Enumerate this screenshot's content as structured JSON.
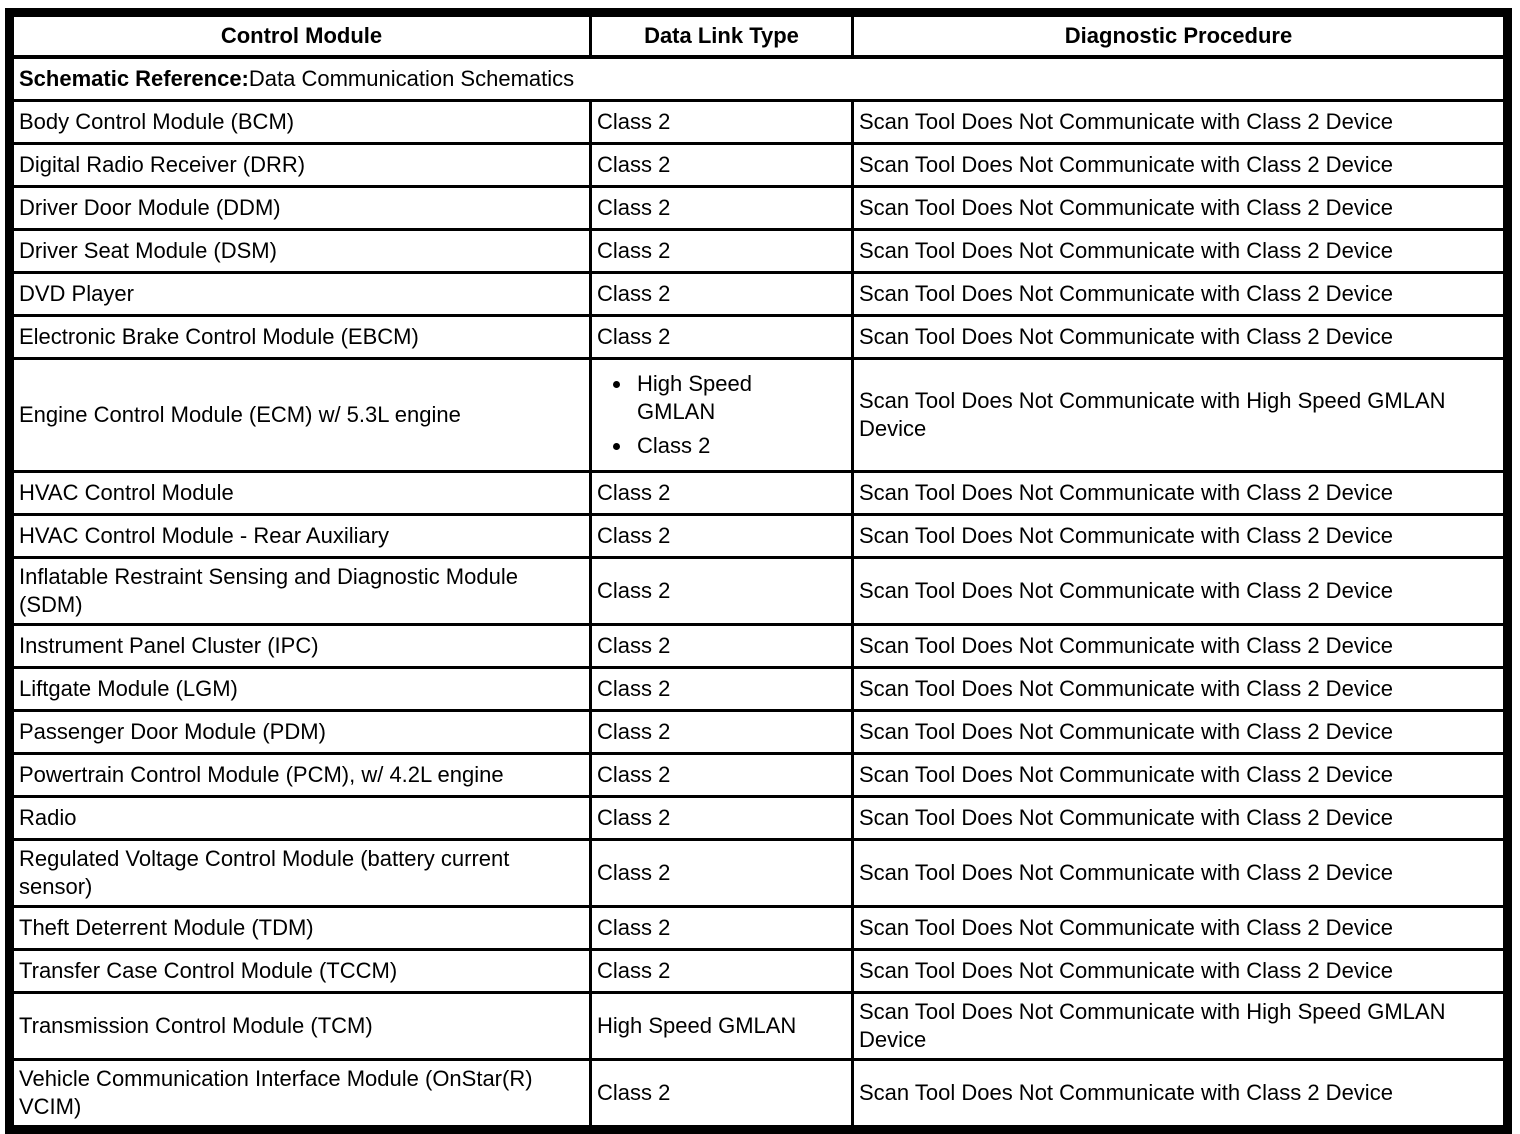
{
  "document": {
    "columns": [
      "Control Module",
      "Data Link Type",
      "Diagnostic Procedure"
    ],
    "schematic_reference": {
      "label": "Schematic Reference:",
      "value": "Data Communication Schematics"
    },
    "rows": [
      {
        "module": "Body Control Module (BCM)",
        "data_link": "Class 2",
        "procedure": "Scan Tool Does Not Communicate with Class 2 Device"
      },
      {
        "module": "Digital Radio Receiver (DRR)",
        "data_link": "Class 2",
        "procedure": "Scan Tool Does Not Communicate with Class 2 Device"
      },
      {
        "module": "Driver Door Module (DDM)",
        "data_link": "Class 2",
        "procedure": "Scan Tool Does Not Communicate with Class 2 Device"
      },
      {
        "module": "Driver Seat Module (DSM)",
        "data_link": "Class 2",
        "procedure": "Scan Tool Does Not Communicate with Class 2 Device"
      },
      {
        "module": "DVD Player",
        "data_link": "Class 2",
        "procedure": "Scan Tool Does Not Communicate with Class 2 Device"
      },
      {
        "module": "Electronic Brake Control Module (EBCM)",
        "data_link": "Class 2",
        "procedure": "Scan Tool Does Not Communicate with Class 2 Device"
      },
      {
        "module": "Engine Control Module (ECM) w/ 5.3L engine",
        "data_link": [
          "High Speed GMLAN",
          "Class 2"
        ],
        "procedure": "Scan Tool Does Not Communicate with High Speed GMLAN Device"
      },
      {
        "module": "HVAC Control Module",
        "data_link": "Class 2",
        "procedure": "Scan Tool Does Not Communicate with Class 2 Device"
      },
      {
        "module": "HVAC Control Module - Rear Auxiliary",
        "data_link": "Class 2",
        "procedure": "Scan Tool Does Not Communicate with Class 2 Device"
      },
      {
        "module": "Inflatable Restraint Sensing and Diagnostic Module (SDM)",
        "data_link": "Class 2",
        "procedure": "Scan Tool Does Not Communicate with Class 2 Device"
      },
      {
        "module": "Instrument Panel Cluster (IPC)",
        "data_link": "Class 2",
        "procedure": "Scan Tool Does Not Communicate with Class 2 Device"
      },
      {
        "module": "Liftgate Module (LGM)",
        "data_link": "Class 2",
        "procedure": "Scan Tool Does Not Communicate with Class 2 Device"
      },
      {
        "module": "Passenger Door Module (PDM)",
        "data_link": "Class 2",
        "procedure": "Scan Tool Does Not Communicate with Class 2 Device"
      },
      {
        "module": "Powertrain Control Module (PCM), w/ 4.2L engine",
        "data_link": "Class 2",
        "procedure": "Scan Tool Does Not Communicate with Class 2 Device"
      },
      {
        "module": "Radio",
        "data_link": "Class 2",
        "procedure": "Scan Tool Does Not Communicate with Class 2 Device"
      },
      {
        "module": "Regulated Voltage Control Module (battery current sensor)",
        "data_link": "Class 2",
        "procedure": "Scan Tool Does Not Communicate with Class 2 Device"
      },
      {
        "module": "Theft Deterrent Module (TDM)",
        "data_link": "Class 2",
        "procedure": "Scan Tool Does Not Communicate with Class 2 Device"
      },
      {
        "module": "Transfer Case Control Module (TCCM)",
        "data_link": "Class 2",
        "procedure": "Scan Tool Does Not Communicate with Class 2 Device"
      },
      {
        "module": "Transmission Control Module (TCM)",
        "data_link": "High Speed GMLAN",
        "procedure": "Scan Tool Does Not Communicate with High Speed GMLAN Device"
      },
      {
        "module": "Vehicle Communication Interface Module (OnStar(R) VCIM)",
        "data_link": "Class 2",
        "procedure": "Scan Tool Does Not Communicate with Class 2 Device"
      }
    ],
    "colors": {
      "border": "#000000",
      "text": "#000000",
      "background": "#ffffff"
    }
  }
}
